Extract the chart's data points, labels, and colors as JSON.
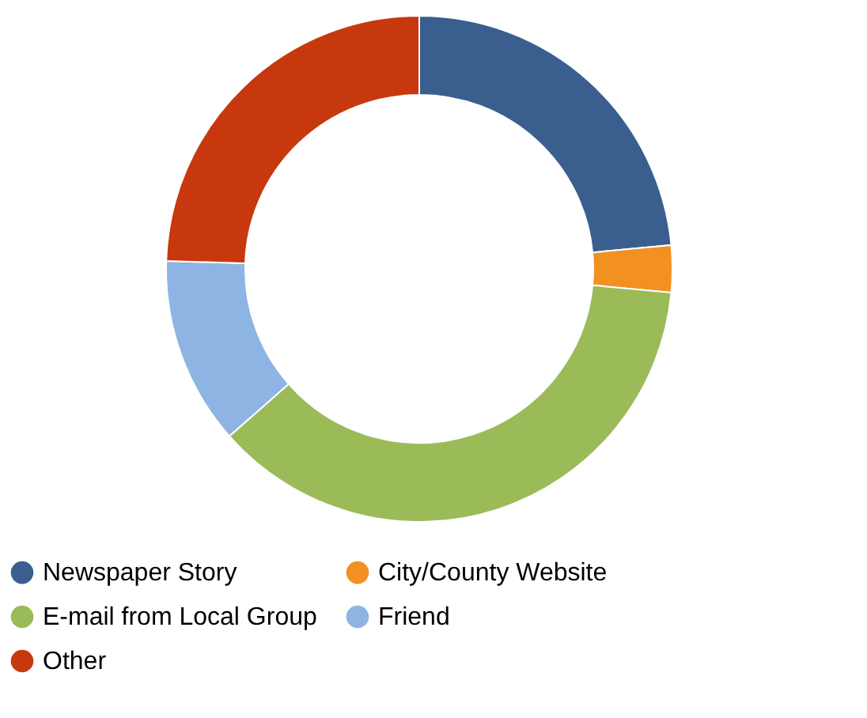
{
  "chart_data": {
    "type": "donut",
    "categories": [
      "Newspaper Story",
      "City/County Website",
      "E-mail from Local Group",
      "Friend",
      "Other"
    ],
    "values": [
      23.5,
      3,
      37,
      12,
      24.5
    ],
    "colors": [
      "#3a5f8f",
      "#f29022",
      "#9bbb59",
      "#8eb4e3",
      "#c8380e"
    ],
    "legend": "bottom"
  }
}
